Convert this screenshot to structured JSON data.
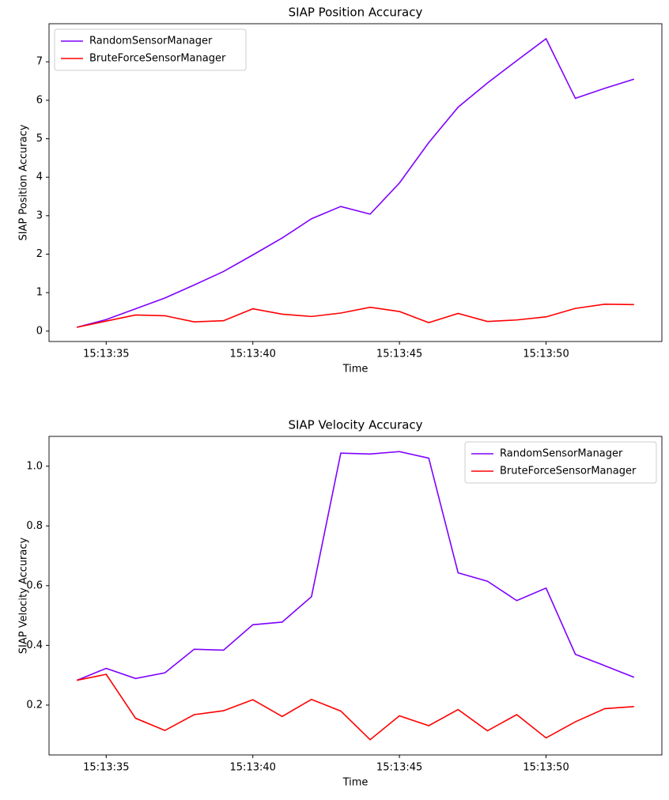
{
  "chart_data": [
    {
      "type": "line",
      "title": "SIAP Position Accuracy",
      "xlabel": "Time",
      "ylabel": "SIAP Position Accuracy",
      "x": [
        "15:13:34",
        "15:13:35",
        "15:13:36",
        "15:13:37",
        "15:13:38",
        "15:13:39",
        "15:13:40",
        "15:13:41",
        "15:13:42",
        "15:13:43",
        "15:13:44",
        "15:13:45",
        "15:13:46",
        "15:13:47",
        "15:13:48",
        "15:13:49",
        "15:13:50",
        "15:13:51",
        "15:13:52",
        "15:13:53"
      ],
      "series": [
        {
          "name": "RandomSensorManager",
          "color": "#7f00ff",
          "values": [
            0.1,
            0.3,
            0.58,
            0.86,
            1.2,
            1.55,
            1.98,
            2.42,
            2.92,
            3.24,
            3.04,
            3.85,
            4.9,
            5.82,
            6.45,
            7.03,
            7.6,
            6.05,
            6.31,
            6.55
          ]
        },
        {
          "name": "BruteForceSensorManager",
          "color": "#ff0000",
          "values": [
            0.1,
            0.26,
            0.42,
            0.4,
            0.24,
            0.27,
            0.58,
            0.44,
            0.38,
            0.47,
            0.62,
            0.51,
            0.22,
            0.46,
            0.25,
            0.29,
            0.37,
            0.59,
            0.7,
            0.69
          ]
        }
      ],
      "xlim": [
        "15:13:33.05",
        "15:13:53.95"
      ],
      "xticks": [
        "15:13:35",
        "15:13:40",
        "15:13:45",
        "15:13:50"
      ],
      "ylim": [
        -0.27,
        7.99
      ],
      "yticks": [
        0,
        1,
        2,
        3,
        4,
        5,
        6,
        7
      ],
      "legend": "upper-left"
    },
    {
      "type": "line",
      "title": "SIAP Velocity Accuracy",
      "xlabel": "Time",
      "ylabel": "SIAP Velocity Accuracy",
      "x": [
        "15:13:34",
        "15:13:35",
        "15:13:36",
        "15:13:37",
        "15:13:38",
        "15:13:39",
        "15:13:40",
        "15:13:41",
        "15:13:42",
        "15:13:43",
        "15:13:44",
        "15:13:45",
        "15:13:46",
        "15:13:47",
        "15:13:48",
        "15:13:49",
        "15:13:50",
        "15:13:51",
        "15:13:52",
        "15:13:53"
      ],
      "series": [
        {
          "name": "RandomSensorManager",
          "color": "#7f00ff",
          "values": [
            0.283,
            0.323,
            0.289,
            0.308,
            0.387,
            0.384,
            0.469,
            0.478,
            0.563,
            1.044,
            1.041,
            1.049,
            1.027,
            0.643,
            0.615,
            0.55,
            0.592,
            0.37,
            0.332,
            0.293
          ]
        },
        {
          "name": "BruteForceSensorManager",
          "color": "#ff0000",
          "values": [
            0.283,
            0.303,
            0.156,
            0.115,
            0.168,
            0.181,
            0.218,
            0.162,
            0.219,
            0.18,
            0.084,
            0.164,
            0.131,
            0.185,
            0.114,
            0.168,
            0.09,
            0.144,
            0.188,
            0.195
          ]
        }
      ],
      "xlim": [
        "15:13:33.05",
        "15:13:53.95"
      ],
      "xticks": [
        "15:13:35",
        "15:13:40",
        "15:13:45",
        "15:13:50"
      ],
      "ylim": [
        0.033,
        1.1
      ],
      "yticks": [
        0.2,
        0.4,
        0.6,
        0.8,
        {
          "value": 1,
          "label": "1.0"
        }
      ],
      "legend": "upper-right"
    }
  ]
}
